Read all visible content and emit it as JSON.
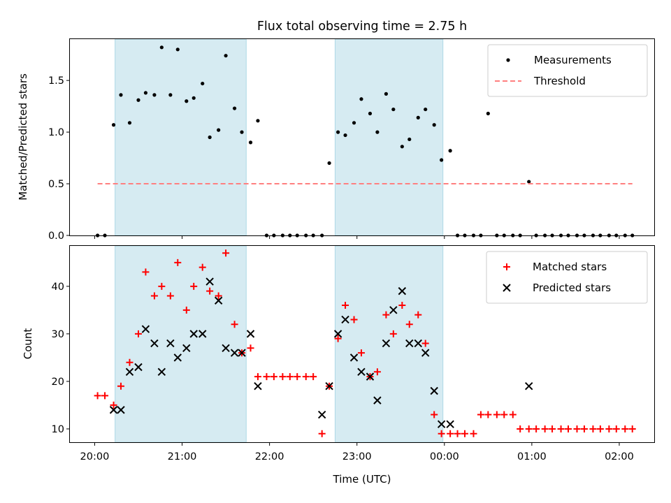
{
  "title": "Flux total observing time = 2.75 h",
  "colors": {
    "shade": "#add8e6",
    "measurement": "#000000",
    "threshold": "#ff7f7f",
    "matched": "#ff0000",
    "predicted": "#000000"
  },
  "chart_data": [
    {
      "type": "scatter",
      "ylabel": "Matched/Predicted stars",
      "ylim": [
        0,
        1.9
      ],
      "yticks": [
        0.0,
        0.5,
        1.0,
        1.5
      ],
      "ytick_labels": [
        "0.0",
        "0.5",
        "1.0",
        "1.5"
      ],
      "legend": {
        "placement": "top-right",
        "entries": [
          {
            "key": "measurements",
            "label": "Measurements"
          },
          {
            "key": "threshold",
            "label": "Threshold"
          }
        ]
      },
      "series": [
        {
          "name": "Measurements",
          "marker": "dot",
          "x": [
            "20:02",
            "20:07",
            "20:13",
            "20:18",
            "20:24",
            "20:30",
            "20:35",
            "20:41",
            "20:46",
            "20:52",
            "20:57",
            "21:03",
            "21:08",
            "21:14",
            "21:19",
            "21:25",
            "21:30",
            "21:36",
            "21:41",
            "21:47",
            "21:52",
            "21:58",
            "22:03",
            "22:09",
            "22:14",
            "22:19",
            "22:25",
            "22:30",
            "22:36",
            "22:41",
            "22:47",
            "22:52",
            "22:58",
            "23:03",
            "23:09",
            "23:14",
            "23:20",
            "23:25",
            "23:31",
            "23:36",
            "23:42",
            "23:47",
            "23:53",
            "23:58",
            "00:04",
            "00:09",
            "00:14",
            "00:20",
            "00:25",
            "00:30",
            "00:36",
            "00:41",
            "00:47",
            "00:52",
            "00:58",
            "01:03",
            "01:09",
            "01:14",
            "01:20",
            "01:25",
            "01:31",
            "01:36",
            "01:42",
            "01:47",
            "01:53",
            "01:58",
            "02:04",
            "02:09"
          ],
          "y": [
            0.0,
            0.0,
            1.07,
            1.36,
            1.09,
            1.31,
            1.38,
            1.36,
            1.82,
            1.36,
            1.8,
            1.3,
            1.33,
            1.47,
            0.95,
            1.02,
            1.74,
            1.23,
            1.0,
            0.9,
            1.11,
            0.0,
            0.0,
            0.0,
            0.0,
            0.0,
            0.0,
            0.0,
            0.0,
            0.7,
            1.0,
            0.97,
            1.09,
            1.32,
            1.18,
            1.0,
            1.37,
            1.22,
            0.86,
            0.93,
            1.14,
            1.22,
            1.07,
            0.73,
            0.82,
            0.0,
            0.0,
            0.0,
            0.0,
            1.18,
            0.0,
            0.0,
            0.0,
            0.0,
            0.52,
            0.0,
            0.0,
            0.0,
            0.0,
            0.0,
            0.0,
            0.0,
            0.0,
            0.0,
            0.0,
            0.0,
            0.0,
            0.0
          ]
        },
        {
          "name": "Threshold",
          "style": "dashed-line",
          "x": [
            "20:02",
            "02:09"
          ],
          "y": [
            0.5,
            0.5
          ]
        }
      ]
    },
    {
      "type": "scatter",
      "xlabel": "Time (UTC)",
      "ylabel": "Count",
      "ylim": [
        7.2,
        48.5
      ],
      "yticks": [
        10,
        20,
        30,
        40
      ],
      "ytick_labels": [
        "10",
        "20",
        "30",
        "40"
      ],
      "legend": {
        "placement": "top-right",
        "entries": [
          {
            "key": "matched",
            "label": "Matched stars"
          },
          {
            "key": "predicted",
            "label": "Predicted stars"
          }
        ]
      },
      "series": [
        {
          "name": "Matched stars",
          "marker": "plus",
          "x": [
            "20:02",
            "20:07",
            "20:13",
            "20:18",
            "20:24",
            "20:30",
            "20:35",
            "20:41",
            "20:46",
            "20:52",
            "20:57",
            "21:03",
            "21:08",
            "21:14",
            "21:19",
            "21:25",
            "21:30",
            "21:36",
            "21:41",
            "21:47",
            "21:52",
            "21:58",
            "22:03",
            "22:09",
            "22:14",
            "22:19",
            "22:25",
            "22:30",
            "22:36",
            "22:41",
            "22:47",
            "22:52",
            "22:58",
            "23:03",
            "23:09",
            "23:14",
            "23:20",
            "23:25",
            "23:31",
            "23:36",
            "23:42",
            "23:47",
            "23:53",
            "23:58",
            "00:04",
            "00:09",
            "00:14",
            "00:20",
            "00:25",
            "00:30",
            "00:36",
            "00:41",
            "00:47",
            "00:52",
            "00:58",
            "01:03",
            "01:09",
            "01:14",
            "01:20",
            "01:25",
            "01:31",
            "01:36",
            "01:42",
            "01:47",
            "01:53",
            "01:58",
            "02:04",
            "02:09"
          ],
          "y": [
            17,
            17,
            15,
            19,
            24,
            30,
            43,
            38,
            40,
            38,
            45,
            35,
            40,
            44,
            39,
            38,
            47,
            32,
            26,
            27,
            21,
            21,
            21,
            21,
            21,
            21,
            21,
            21,
            9,
            19,
            29,
            36,
            33,
            26,
            21,
            22,
            34,
            30,
            36,
            32,
            34,
            28,
            13,
            9,
            9,
            9,
            9,
            9,
            13,
            13,
            13,
            13,
            13,
            10,
            10,
            10,
            10,
            10,
            10,
            10,
            10,
            10,
            10,
            10,
            10,
            10,
            10,
            10
          ]
        },
        {
          "name": "Predicted stars",
          "marker": "x",
          "x": [
            "20:13",
            "20:18",
            "20:24",
            "20:30",
            "20:35",
            "20:41",
            "20:46",
            "20:52",
            "20:57",
            "21:03",
            "21:08",
            "21:14",
            "21:19",
            "21:25",
            "21:30",
            "21:36",
            "21:41",
            "21:47",
            "21:52",
            "22:36",
            "22:41",
            "22:47",
            "22:52",
            "22:58",
            "23:03",
            "23:09",
            "23:14",
            "23:20",
            "23:25",
            "23:31",
            "23:36",
            "23:42",
            "23:47",
            "23:53",
            "23:58",
            "00:04",
            "00:58"
          ],
          "y": [
            14,
            14,
            22,
            23,
            31,
            28,
            22,
            28,
            25,
            27,
            30,
            30,
            41,
            37,
            27,
            26,
            26,
            30,
            19,
            13,
            19,
            30,
            33,
            25,
            22,
            21,
            16,
            28,
            35,
            39,
            28,
            28,
            26,
            18,
            11,
            11,
            19
          ]
        }
      ]
    }
  ],
  "shared_axis": {
    "shaded_intervals": [
      [
        "20:14",
        "21:44"
      ],
      [
        "22:45",
        "23:59"
      ]
    ],
    "xlim": [
      "19:43",
      "02:24"
    ],
    "xticks": [
      "20:00",
      "21:00",
      "22:00",
      "23:00",
      "00:00",
      "01:00",
      "02:00"
    ]
  }
}
